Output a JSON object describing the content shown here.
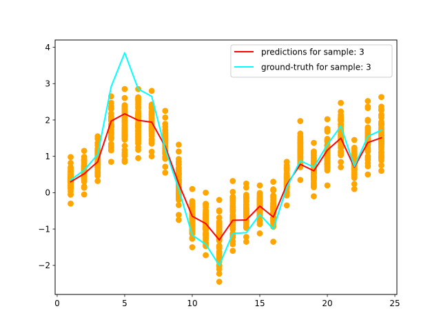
{
  "chart_data": {
    "type": "line",
    "title": "",
    "xlabel": "",
    "ylabel": "",
    "xlim": [
      -0.15,
      25.15
    ],
    "ylim": [
      -2.8,
      4.2
    ],
    "xticks": [
      0,
      5,
      10,
      15,
      20,
      25
    ],
    "yticks": [
      -2,
      -1,
      0,
      1,
      2,
      3,
      4
    ],
    "grid": false,
    "legend_position": "top-right",
    "colors": {
      "scatter": "#ffa500",
      "predictions": "#ff0000",
      "ground_truth": "#00ffff"
    },
    "scatter": {
      "name": "",
      "x": [
        1,
        2,
        3,
        4,
        5,
        6,
        7,
        8,
        9,
        10,
        11,
        12,
        13,
        14,
        15,
        16,
        17,
        18,
        19,
        20,
        21,
        22,
        23,
        24
      ],
      "y_min": [
        -0.3,
        -0.05,
        0.32,
        0.85,
        0.85,
        0.95,
        1.0,
        0.55,
        -0.75,
        -1.5,
        -1.72,
        -2.45,
        -1.6,
        -1.35,
        -1.12,
        -1.35,
        -0.35,
        0.35,
        -0.1,
        0.2,
        0.7,
        0.1,
        0.5,
        0.6
      ],
      "y_max": [
        0.98,
        1.15,
        1.55,
        2.65,
        2.85,
        2.85,
        2.8,
        2.25,
        1.32,
        0.1,
        0.0,
        -0.2,
        0.32,
        0.25,
        0.2,
        0.3,
        0.85,
        1.97,
        1.37,
        2.02,
        2.47,
        1.45,
        2.52,
        2.63
      ]
    },
    "series": [
      {
        "name": "predictions for sample: 3",
        "x": [
          1,
          2,
          3,
          4,
          5,
          6,
          7,
          8,
          9,
          10,
          11,
          12,
          13,
          14,
          15,
          16,
          17,
          18,
          19,
          20,
          21,
          22,
          23,
          24
        ],
        "y": [
          0.3,
          0.52,
          0.85,
          1.97,
          2.17,
          1.99,
          1.94,
          1.27,
          0.25,
          -0.65,
          -0.85,
          -1.3,
          -0.76,
          -0.75,
          -0.37,
          -0.67,
          0.22,
          0.78,
          0.6,
          1.17,
          1.5,
          0.7,
          1.38,
          1.51
        ]
      },
      {
        "name": "ground-truth for sample: 3",
        "x": [
          1,
          2,
          3,
          4,
          5,
          6,
          7,
          8,
          9,
          10,
          11,
          12,
          13,
          14,
          15,
          16,
          17,
          18,
          19,
          20,
          21,
          22,
          23,
          24
        ],
        "y": [
          0.35,
          0.62,
          1.05,
          2.92,
          3.85,
          2.85,
          2.65,
          1.2,
          0.1,
          -1.17,
          -1.42,
          -2.0,
          -1.12,
          -1.1,
          -0.6,
          -1.0,
          0.15,
          0.88,
          0.7,
          1.32,
          1.83,
          0.72,
          1.55,
          1.72
        ]
      }
    ]
  }
}
